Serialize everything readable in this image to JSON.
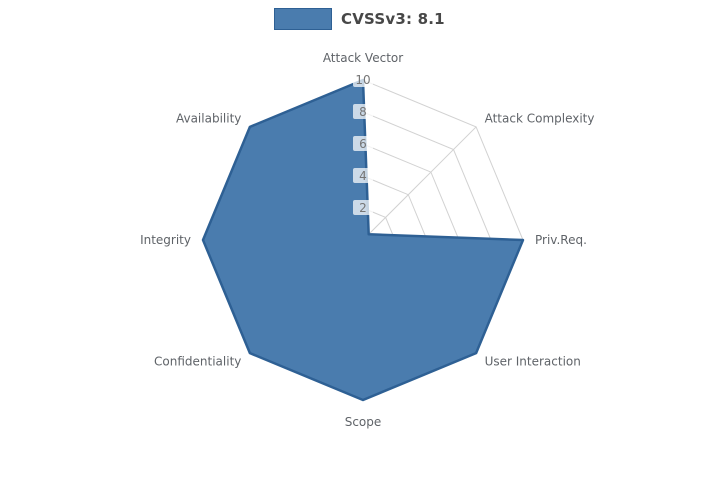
{
  "legend": {
    "label": "CVSSv3: 8.1"
  },
  "chart_data": {
    "type": "radar",
    "title": "CVSSv3: 8.1",
    "categories": [
      "Attack Vector",
      "Attack Complexity",
      "Priv.Req.",
      "User Interaction",
      "Scope",
      "Confidentiality",
      "Integrity",
      "Availability"
    ],
    "series": [
      {
        "name": "CVSSv3: 8.1",
        "values": [
          10,
          0.5,
          10,
          10,
          10,
          10,
          10,
          10
        ]
      }
    ],
    "radial_ticks": [
      2,
      4,
      6,
      8,
      10
    ],
    "rmax": 10,
    "start_angle_deg": -90,
    "direction": "clockwise",
    "grid": true,
    "legend_position": "top-center",
    "colors": {
      "fill": "#4a7cae",
      "edge": "#2e6094",
      "grid": "#d2d2d2",
      "axis_label": "#5f6368",
      "tick_text": "#757575",
      "tick_bg": "rgba(255,255,255,0.72)",
      "legend_text": "#474747"
    }
  }
}
